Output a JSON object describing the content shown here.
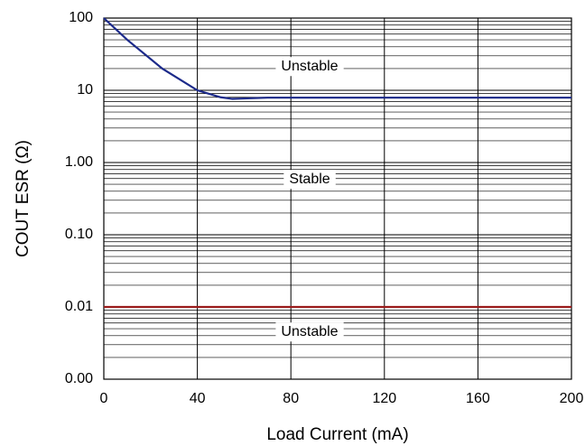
{
  "chart_data": {
    "type": "line",
    "xlabel": "Load Current (mA)",
    "ylabel": "COUT ESR (Ω)",
    "xlim": [
      0,
      200
    ],
    "xticks": [
      0,
      40,
      80,
      120,
      160,
      200
    ],
    "ylim": [
      0.001,
      100
    ],
    "yticks": [
      {
        "value": 0.001,
        "label": "0.00"
      },
      {
        "value": 0.01,
        "label": "0.01"
      },
      {
        "value": 0.1,
        "label": "0.10"
      },
      {
        "value": 1,
        "label": "1.00"
      },
      10,
      100
    ],
    "yscale": "log",
    "grid": true,
    "series": [
      {
        "color": "#1c2a8a",
        "x": [
          0,
          10,
          25,
          40,
          50,
          55,
          60,
          70,
          200
        ],
        "values": [
          100,
          50,
          20,
          10,
          8,
          7.6,
          7.7,
          7.9,
          7.9
        ]
      },
      {
        "color": "#9b1c1c",
        "x": [
          0,
          200
        ],
        "values": [
          0.01,
          0.01
        ]
      }
    ],
    "annotations": [
      "Unstable",
      "Stable",
      "Unstable"
    ]
  }
}
